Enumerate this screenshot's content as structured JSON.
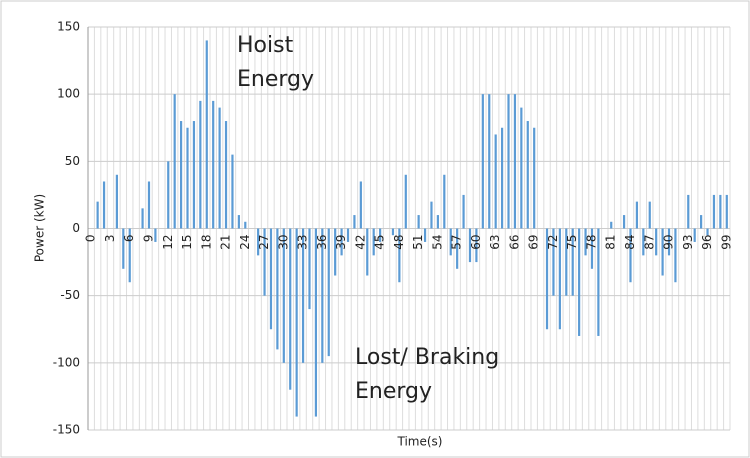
{
  "chart_data": {
    "type": "bar",
    "x_label": "Time(s)",
    "y_label": "Power (kW)",
    "annotations": [
      {
        "lines": [
          "Hoist",
          "Energy"
        ]
      },
      {
        "lines": [
          "Lost/ Braking",
          "Energy"
        ]
      }
    ],
    "categories": [
      "0",
      null,
      null,
      "3",
      null,
      null,
      "6",
      null,
      null,
      "9",
      null,
      null,
      "12",
      null,
      null,
      "15",
      null,
      null,
      "18",
      null,
      null,
      "21",
      null,
      null,
      "24",
      null,
      null,
      "27",
      null,
      null,
      "30",
      null,
      null,
      "33",
      null,
      null,
      "36",
      null,
      null,
      "39",
      null,
      null,
      "42",
      null,
      null,
      "45",
      null,
      null,
      "48",
      null,
      null,
      "51",
      null,
      null,
      "54",
      null,
      null,
      "57",
      null,
      null,
      "60",
      null,
      null,
      "63",
      null,
      null,
      "66",
      null,
      null,
      "69",
      null,
      null,
      "72",
      null,
      null,
      "75",
      null,
      null,
      "78",
      null,
      null,
      "81",
      null,
      null,
      "84",
      null,
      null,
      "87",
      null,
      null,
      "90",
      null,
      null,
      "93",
      null,
      null,
      "96",
      null,
      null,
      "99"
    ],
    "values": [
      0,
      20,
      35,
      0,
      40,
      -30,
      -40,
      0,
      15,
      35,
      -10,
      0,
      50,
      100,
      80,
      75,
      80,
      95,
      140,
      95,
      90,
      80,
      55,
      10,
      5,
      0,
      -20,
      -50,
      -75,
      -90,
      -100,
      -120,
      -140,
      -100,
      -60,
      -140,
      -100,
      -95,
      -35,
      -20,
      -10,
      10,
      35,
      -35,
      -20,
      -10,
      0,
      -5,
      -40,
      40,
      0,
      10,
      -10,
      20,
      10,
      40,
      -20,
      -30,
      25,
      -25,
      -25,
      100,
      100,
      70,
      75,
      100,
      100,
      90,
      80,
      75,
      0,
      -75,
      -50,
      -75,
      -50,
      -50,
      -80,
      -20,
      -30,
      -80,
      0,
      5,
      0,
      10,
      -40,
      20,
      -20,
      20,
      -20,
      -35,
      -20,
      -40,
      0,
      25,
      -10,
      10,
      -5,
      25,
      25,
      25
    ],
    "color": "#5b9bd5",
    "ylim": [
      -150,
      150
    ],
    "yticks": [
      -150,
      -100,
      -50,
      0,
      50,
      100,
      150
    ],
    "grid": true
  }
}
